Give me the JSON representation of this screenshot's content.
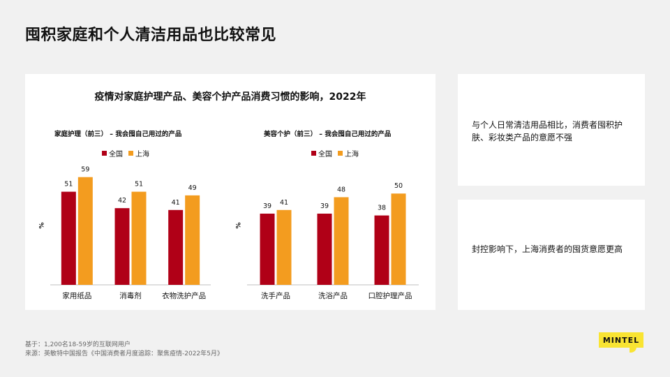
{
  "slide_title": "囤积家庭和个人清洁用品也比较常见",
  "panel_title": "疫情对家庭护理产品、美容个护产品消费习惯的影响，2022年",
  "colors": {
    "nation": "#b00017",
    "shanghai": "#f39c1f"
  },
  "chart_data": [
    {
      "type": "bar",
      "title": "家庭护理（前三） – 我会囤自己用过的产品",
      "ylabel": "%",
      "categories": [
        "家用纸品",
        "消毒剂",
        "衣物洗护产品"
      ],
      "series": [
        {
          "name": "全国",
          "values": [
            51,
            42,
            41
          ]
        },
        {
          "name": "上海",
          "values": [
            59,
            51,
            49
          ]
        }
      ],
      "ylim": [
        0,
        65
      ],
      "legend": "top-left"
    },
    {
      "type": "bar",
      "title": "美容个护（前三） – 我会囤自己用过的产品",
      "ylabel": "%",
      "categories": [
        "洗手产品",
        "洗浴产品",
        "口腔护理产品"
      ],
      "series": [
        {
          "name": "全国",
          "values": [
            39,
            39,
            38
          ]
        },
        {
          "name": "上海",
          "values": [
            41,
            48,
            50
          ]
        }
      ],
      "ylim": [
        0,
        65
      ],
      "legend": "top-left"
    }
  ],
  "insights": [
    "与个人日常清洁用品相比，消费者囤积护肤、彩妆类产品的意愿不强",
    "封控影响下，上海消费者的囤货意愿更高"
  ],
  "footnotes": {
    "base": "基于：1,200名18-59岁的互联网用户",
    "source": "来源：英敏特中国报告《中国消费者月度追踪：聚焦疫情-2022年5月》"
  },
  "logo_text": "MINTEL"
}
